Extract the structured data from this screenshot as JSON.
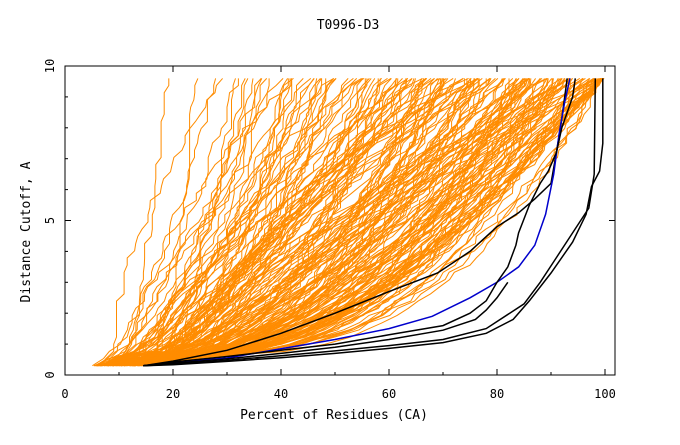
{
  "chart_data": {
    "type": "line",
    "title": "T0996-D3",
    "xlabel": "Percent of Residues (CA)",
    "ylabel": "Distance Cutoff, A",
    "xlim": [
      0,
      100
    ],
    "ylim": [
      0,
      10
    ],
    "x_ticks": [
      "0",
      "20",
      "40",
      "60",
      "80",
      "100"
    ],
    "y_ticks": [
      "0",
      "5",
      "10"
    ],
    "grid": false,
    "legend": "none",
    "colors": {
      "background_curves": "#ff8c00",
      "highlight_black": "#000000",
      "highlight_blue": "#0000cc"
    },
    "background_band": {
      "description_count": 200,
      "y_min": 0.3,
      "y_max": 9.6
    },
    "series": [
      {
        "color": "#000000",
        "x": [
          14.5,
          20,
          30,
          40,
          50,
          60,
          69,
          75,
          80,
          84,
          87,
          90,
          91,
          92,
          93
        ],
        "y": [
          0.3,
          0.45,
          0.8,
          1.35,
          2.0,
          2.7,
          3.3,
          4.0,
          4.8,
          5.25,
          5.7,
          6.2,
          7.2,
          8.3,
          9.6
        ]
      },
      {
        "color": "#0000cc",
        "x": [
          14.5,
          20,
          30,
          40,
          50,
          60,
          68,
          75,
          80,
          84,
          87,
          89,
          90.5,
          91.5,
          92.5,
          93.5
        ],
        "y": [
          0.3,
          0.4,
          0.55,
          0.85,
          1.15,
          1.5,
          1.9,
          2.5,
          3.0,
          3.5,
          4.2,
          5.2,
          6.5,
          7.8,
          8.8,
          9.6
        ]
      },
      {
        "color": "#000000",
        "x": [
          14.5,
          20,
          30,
          40,
          50,
          60,
          70,
          75,
          78,
          80,
          82,
          83.5,
          84,
          86,
          88,
          89.5,
          91,
          92,
          93,
          94,
          94.5
        ],
        "y": [
          0.3,
          0.42,
          0.6,
          0.8,
          1.0,
          1.3,
          1.6,
          2.0,
          2.4,
          3.0,
          3.5,
          4.2,
          4.6,
          5.5,
          6.2,
          6.6,
          7.2,
          8.0,
          8.5,
          9.0,
          9.6
        ]
      },
      {
        "color": "#000000",
        "x": [
          14.5,
          20,
          30,
          40,
          50,
          60,
          70,
          76,
          78,
          80,
          82
        ],
        "y": [
          0.3,
          0.38,
          0.52,
          0.7,
          0.9,
          1.15,
          1.45,
          1.8,
          2.1,
          2.5,
          3.0
        ]
      },
      {
        "color": "#000000",
        "x": [
          14.5,
          20,
          30,
          40,
          50,
          60,
          70,
          78,
          85,
          88,
          91,
          94,
          97,
          98,
          98.2
        ],
        "y": [
          0.3,
          0.35,
          0.48,
          0.62,
          0.78,
          0.95,
          1.15,
          1.5,
          2.3,
          3.0,
          3.8,
          4.6,
          5.4,
          6.5,
          9.6
        ]
      },
      {
        "color": "#000000",
        "x": [
          14.5,
          20,
          30,
          40,
          50,
          60,
          70,
          78,
          83,
          86,
          90,
          94,
          96.5,
          97.5,
          99,
          99.6,
          99.6
        ],
        "y": [
          0.3,
          0.33,
          0.44,
          0.56,
          0.7,
          0.86,
          1.05,
          1.35,
          1.8,
          2.4,
          3.3,
          4.3,
          5.2,
          6.1,
          6.6,
          7.5,
          9.6
        ]
      }
    ]
  }
}
